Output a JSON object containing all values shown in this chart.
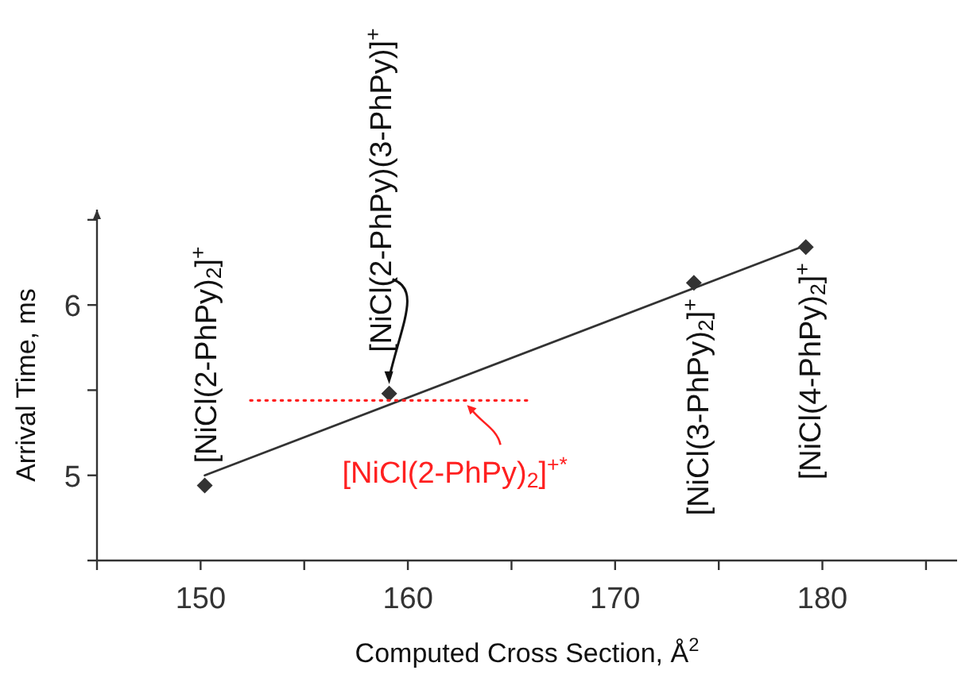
{
  "chart_data": {
    "type": "scatter",
    "xlabel": "Computed Cross Section, Å$^{2}$",
    "ylabel": "Arrival Time, ms",
    "xlim": [
      145,
      186.5
    ],
    "xticks": [
      {
        "value": 145,
        "label": null
      },
      150,
      {
        "value": 155,
        "label": null
      },
      160,
      {
        "value": 165,
        "label": null
      },
      170,
      {
        "value": 175,
        "label": null
      },
      180,
      {
        "value": 185,
        "label": null
      }
    ],
    "ylim": [
      4.5,
      6.56
    ],
    "yticks": [
      {
        "value": 4.5,
        "label": null
      },
      5,
      {
        "value": 5.5,
        "label": null
      },
      6,
      {
        "value": 6.5,
        "label": null
      }
    ],
    "grid": false,
    "legend": "center",
    "series": [
      {
        "type": "line",
        "color": "#333333",
        "line_style": "solid",
        "marker": "none",
        "x": [
          150.2,
          179.2
        ],
        "values": [
          5.0,
          6.35
        ]
      },
      {
        "color": "#333333",
        "marker": "diamond",
        "x": [
          150.2,
          159.1,
          173.8,
          179.2
        ],
        "values": [
          4.94,
          5.48,
          6.13,
          6.34
        ]
      },
      {
        "type": "line",
        "name": "[NiCl(2-PhPy)$_{2}$]$^{+*}$",
        "color": "#ff2020",
        "line_style": "dotted",
        "marker": "none",
        "x": [
          152.4,
          166.0
        ],
        "values": [
          5.44,
          5.44
        ]
      }
    ],
    "annotations": [
      {
        "text": "[NiCl(2-PhPy)$_{2}$]$^{+}$",
        "x": 150.2,
        "y": 4.94
      },
      {
        "text": "[NiCl(2-PhPy)(3-PhPy)]$^{+}$",
        "x": 159.1,
        "y": 5.48
      },
      {
        "text": "[NiCl(3-PhPy)$_{2}$]$^{+}$",
        "x": 173.8,
        "y": 6.13
      },
      {
        "text": "[NiCl(4-PhPy)$_{2}$]$^{+}$",
        "x": 179.2,
        "y": 6.34
      }
    ]
  }
}
